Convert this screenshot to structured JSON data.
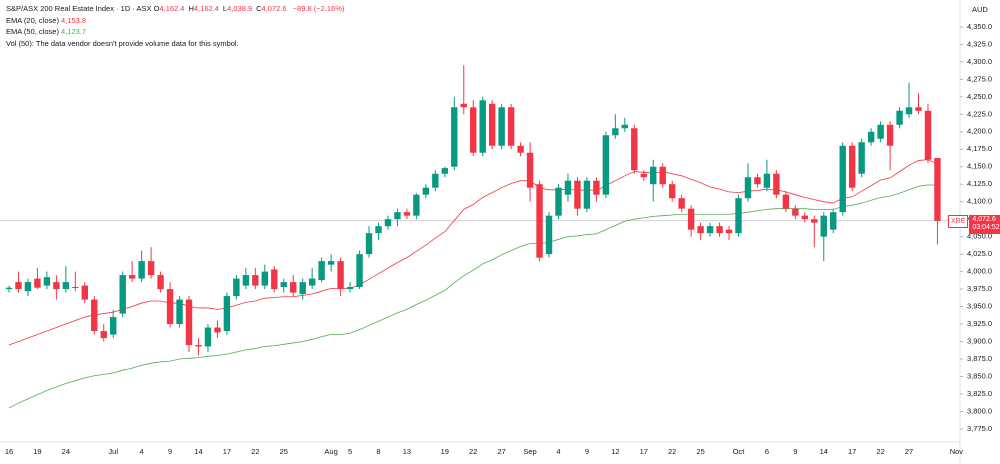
{
  "header": {
    "title": "S&P/ASX 200 Real Estate Index · 1D · ASX",
    "ohlc": [
      {
        "label": "O",
        "value": "4,162.4"
      },
      {
        "label": "H",
        "value": "4,162.4"
      },
      {
        "label": "L",
        "value": "4,038.9"
      },
      {
        "label": "C",
        "value": "4,072.6"
      }
    ],
    "change": "−89.8 (−2.16%)",
    "indicators": [
      {
        "name": "EMA (20, close)",
        "value": "4,153.8"
      },
      {
        "name": "EMA (50, close)",
        "value": "4,123.7"
      }
    ],
    "volume_note": "Vol (50): The data vendor doesn't provide volume data for this symbol."
  },
  "price_tag": {
    "symbol": "XRE",
    "price": "4,072.6",
    "countdown": "03:04:52"
  },
  "chart_data": {
    "type": "candlestick",
    "currency": "AUD",
    "up_color": "#089981",
    "down_color": "#f23645",
    "categories": [
      "16",
      null,
      null,
      "19",
      null,
      null,
      "24",
      null,
      null,
      null,
      null,
      "Jul",
      null,
      null,
      "4",
      null,
      null,
      "9",
      null,
      null,
      "14",
      null,
      null,
      "17",
      null,
      null,
      "22",
      null,
      null,
      "25",
      null,
      null,
      null,
      null,
      "Aug",
      null,
      "5",
      null,
      null,
      "8",
      null,
      null,
      "13",
      null,
      null,
      null,
      "19",
      null,
      null,
      "22",
      null,
      null,
      "27",
      null,
      null,
      "Sep",
      null,
      null,
      "4",
      null,
      null,
      "9",
      null,
      null,
      "12",
      null,
      null,
      "17",
      null,
      null,
      "22",
      null,
      null,
      "25",
      null,
      null,
      null,
      "Oct",
      null,
      null,
      "6",
      null,
      null,
      "9",
      null,
      null,
      "14",
      null,
      null,
      "17",
      null,
      null,
      "22",
      null,
      null,
      "27",
      null,
      null,
      null,
      null,
      "Nov"
    ],
    "open": [
      3975,
      3985,
      3972,
      3990,
      3980,
      3985,
      3975,
      3978,
      3980,
      3960,
      3915,
      3910,
      3940,
      3995,
      3990,
      4015,
      3995,
      3975,
      3925,
      3960,
      3895,
      3893,
      3920,
      3915,
      3965,
      3980,
      3995,
      3980,
      4003,
      3978,
      3985,
      3968,
      3980,
      3988,
      4010,
      4015,
      3975,
      3978,
      4025,
      4055,
      4065,
      4075,
      4085,
      4080,
      4110,
      4120,
      4140,
      4150,
      4240,
      4235,
      4170,
      4240,
      4180,
      4235,
      4180,
      4170,
      4125,
      4025,
      4080,
      4110,
      4130,
      4090,
      4130,
      4110,
      4195,
      4205,
      4205,
      4140,
      4125,
      4150,
      4125,
      4105,
      4090,
      4065,
      4055,
      4065,
      4060,
      4055,
      4105,
      4135,
      4120,
      4140,
      4110,
      4090,
      4080,
      4075,
      4050,
      4060,
      4085,
      4180,
      4140,
      4185,
      4190,
      4210,
      4210,
      4225,
      4235,
      4230,
      4162.4,
      null,
      null
    ],
    "high": [
      3980,
      4000,
      3990,
      4005,
      4000,
      3995,
      4008,
      4000,
      3985,
      3965,
      3925,
      3945,
      4000,
      4015,
      4030,
      4035,
      4000,
      3985,
      3965,
      3965,
      3905,
      3925,
      3930,
      3970,
      3995,
      4005,
      4005,
      4010,
      4008,
      3990,
      3995,
      3990,
      4005,
      4020,
      4025,
      4020,
      3985,
      4030,
      4065,
      4070,
      4080,
      4090,
      4090,
      4112,
      4125,
      4145,
      4150,
      4250,
      4295,
      4245,
      4250,
      4245,
      4240,
      4240,
      4185,
      4185,
      4130,
      4085,
      4125,
      4140,
      4135,
      4135,
      4135,
      4200,
      4225,
      4220,
      4210,
      4145,
      4160,
      4155,
      4130,
      4110,
      4095,
      4070,
      4070,
      4070,
      4065,
      4110,
      4155,
      4140,
      4160,
      4145,
      4115,
      4095,
      4085,
      4080,
      4085,
      4090,
      4185,
      4185,
      4190,
      4205,
      4215,
      4215,
      4235,
      4270,
      4255,
      4240,
      4162.4,
      null,
      null
    ],
    "low": [
      3970,
      3970,
      3965,
      3975,
      3975,
      3960,
      3970,
      3972,
      3955,
      3910,
      3900,
      3905,
      3935,
      3985,
      3985,
      3990,
      3970,
      3920,
      3920,
      3885,
      3880,
      3885,
      3905,
      3910,
      3960,
      3975,
      3975,
      3975,
      3970,
      3970,
      3965,
      3960,
      3975,
      3985,
      4000,
      3965,
      3970,
      3975,
      4020,
      4045,
      4060,
      4065,
      4075,
      4075,
      4105,
      4115,
      4135,
      4145,
      4225,
      4165,
      4165,
      4175,
      4175,
      4175,
      4165,
      4100,
      4015,
      4020,
      4075,
      4100,
      4080,
      4085,
      4100,
      4105,
      4190,
      4200,
      4140,
      4130,
      4100,
      4120,
      4100,
      4085,
      4050,
      4045,
      4050,
      4050,
      4045,
      4050,
      4100,
      4120,
      4115,
      4105,
      4085,
      4075,
      4070,
      4035,
      4015,
      4055,
      4080,
      4115,
      4135,
      4180,
      4185,
      4145,
      4205,
      4220,
      4225,
      4155,
      4038.9,
      null,
      null
    ],
    "close": [
      3977,
      3975,
      3985,
      3977,
      3992,
      3975,
      3985,
      3977,
      3960,
      3915,
      3905,
      3935,
      3995,
      3990,
      4015,
      3995,
      3975,
      3925,
      3960,
      3895,
      3893,
      3920,
      3913,
      3965,
      3990,
      3995,
      3980,
      4000,
      3975,
      3985,
      3970,
      3985,
      3990,
      4015,
      4015,
      3975,
      3978,
      4025,
      4055,
      4065,
      4075,
      4085,
      4080,
      4110,
      4120,
      4140,
      4148,
      4235,
      4235,
      4170,
      4245,
      4180,
      4235,
      4180,
      4170,
      4120,
      4020,
      4080,
      4120,
      4130,
      4090,
      4130,
      4110,
      4195,
      4205,
      4210,
      4145,
      4135,
      4150,
      4125,
      4105,
      4090,
      4060,
      4055,
      4065,
      4055,
      4055,
      4105,
      4135,
      4125,
      4140,
      4110,
      4090,
      4080,
      4075,
      4070,
      4080,
      4085,
      4180,
      4120,
      4185,
      4200,
      4210,
      4180,
      4230,
      4235,
      4230,
      4160,
      4072.6,
      null,
      null
    ],
    "series": [
      {
        "name": "EMA (20, close)",
        "color": "#f23645",
        "values": [
          3895,
          3900,
          3905,
          3910,
          3915,
          3920,
          3925,
          3930,
          3935,
          3938,
          3940,
          3942,
          3946,
          3950,
          3955,
          3958,
          3958,
          3955,
          3955,
          3950,
          3948,
          3948,
          3946,
          3948,
          3952,
          3956,
          3958,
          3962,
          3963,
          3964,
          3964,
          3966,
          3968,
          3972,
          3976,
          3976,
          3976,
          3981,
          3989,
          3997,
          4005,
          4013,
          4020,
          4029,
          4038,
          4048,
          4057,
          4073,
          4089,
          4096,
          4106,
          4113,
          4120,
          4126,
          4130,
          4130,
          4120,
          4117,
          4117,
          4118,
          4116,
          4117,
          4116,
          4123,
          4130,
          4137,
          4143,
          4142,
          4141,
          4143,
          4140,
          4137,
          4132,
          4127,
          4121,
          4118,
          4114,
          4113,
          4115,
          4116,
          4118,
          4117,
          4114,
          4110,
          4106,
          4103,
          4100,
          4098,
          4105,
          4107,
          4115,
          4123,
          4131,
          4134,
          4143,
          4152,
          4159,
          4160,
          4153.8,
          null,
          null
        ]
      },
      {
        "name": "EMA (50, close)",
        "color": "#4caf50",
        "values": [
          3805,
          3812,
          3818,
          3824,
          3830,
          3835,
          3840,
          3844,
          3848,
          3851,
          3853,
          3855,
          3859,
          3862,
          3866,
          3869,
          3871,
          3872,
          3875,
          3876,
          3877,
          3879,
          3880,
          3882,
          3885,
          3888,
          3890,
          3893,
          3894,
          3896,
          3898,
          3900,
          3903,
          3907,
          3910,
          3910,
          3912,
          3917,
          3923,
          3929,
          3935,
          3941,
          3946,
          3953,
          3959,
          3966,
          3973,
          3984,
          3994,
          4002,
          4011,
          4017,
          4024,
          4030,
          4036,
          4040,
          4040,
          4042,
          4046,
          4050,
          4051,
          4053,
          4054,
          4060,
          4066,
          4072,
          4075,
          4077,
          4079,
          4080,
          4081,
          4082,
          4082,
          4082,
          4082,
          4082,
          4082,
          4083,
          4085,
          4087,
          4089,
          4090,
          4090,
          4090,
          4090,
          4089,
          4089,
          4089,
          4093,
          4095,
          4098,
          4102,
          4106,
          4108,
          4112,
          4117,
          4122,
          4124,
          4123.7,
          null,
          null
        ]
      }
    ],
    "ylim": [
      3742,
      4377
    ],
    "yticks": [
      {
        "value": 4350,
        "label": "4,350.0"
      },
      {
        "value": 4325,
        "label": "4,325.0"
      },
      {
        "value": 4300,
        "label": "4,300.0"
      },
      {
        "value": 4275,
        "label": "4,275.0"
      },
      {
        "value": 4250,
        "label": "4,250.0"
      },
      {
        "value": 4225,
        "label": "4,225.0"
      },
      {
        "value": 4200,
        "label": "4,200.0"
      },
      {
        "value": 4175,
        "label": "4,175.0"
      },
      {
        "value": 4150,
        "label": "4,150.0"
      },
      {
        "value": 4125,
        "label": "4,125.0"
      },
      {
        "value": 4100,
        "label": "4,100.0"
      },
      {
        "value": 4075,
        "label": "4,075.0"
      },
      {
        "value": 4050,
        "label": "4,050.0"
      },
      {
        "value": 4025,
        "label": "4,025.0"
      },
      {
        "value": 4000,
        "label": "4,000.0"
      },
      {
        "value": 3975,
        "label": "3,975.0"
      },
      {
        "value": 3950,
        "label": "3,950.0"
      },
      {
        "value": 3925,
        "label": "3,925.0"
      },
      {
        "value": 3900,
        "label": "3,900.0"
      },
      {
        "value": 3875,
        "label": "3,875.0"
      },
      {
        "value": 3850,
        "label": "3,850.0"
      },
      {
        "value": 3825,
        "label": "3,825.0"
      },
      {
        "value": 3800,
        "label": "3,800.0"
      },
      {
        "value": 3775,
        "label": "3,775.0"
      }
    ],
    "grid": false
  }
}
